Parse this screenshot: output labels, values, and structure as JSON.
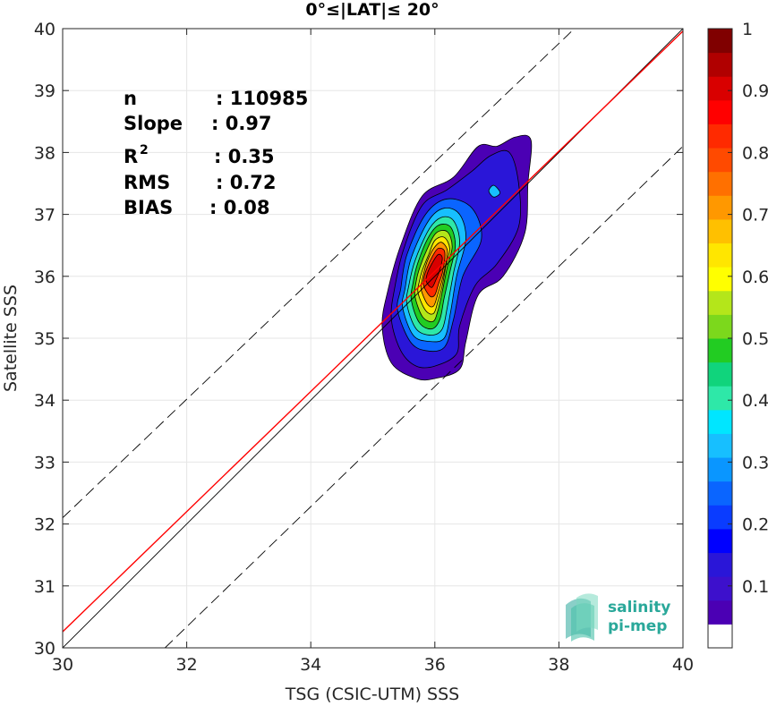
{
  "chart_data": {
    "type": "contour-density-scatter",
    "title": "0°≤|LAT|≤ 20°",
    "xlabel": "TSG (CSIC-UTM) SSS",
    "ylabel": "Satellite SSS",
    "xlim": [
      30,
      40
    ],
    "ylim": [
      30,
      40
    ],
    "xticks": [
      "30",
      "32",
      "34",
      "36",
      "38",
      "40"
    ],
    "yticks": [
      "30",
      "31",
      "32",
      "33",
      "34",
      "35",
      "36",
      "37",
      "38",
      "39",
      "40"
    ],
    "grid": true,
    "stats": [
      {
        "label": "n",
        "value": ": 110985"
      },
      {
        "label": "Slope",
        "value": ": 0.97"
      },
      {
        "label": "R",
        "sup": "2",
        "value": ": 0.35"
      },
      {
        "label": "RMS",
        "value": ": 0.72"
      },
      {
        "label": "BIAS",
        "value": ": 0.08"
      }
    ],
    "lines": [
      {
        "name": "one-to-one",
        "color": "#000000",
        "style": "solid",
        "points": [
          [
            30,
            30
          ],
          [
            40,
            40
          ]
        ]
      },
      {
        "name": "fit",
        "color": "#ff0000",
        "style": "solid",
        "points": [
          [
            30,
            30.26
          ],
          [
            40,
            39.96
          ]
        ]
      },
      {
        "name": "upper-bound",
        "color": "#000000",
        "style": "dashed",
        "points": [
          [
            30,
            32.1
          ],
          [
            38.25,
            40
          ]
        ]
      },
      {
        "name": "lower-bound",
        "color": "#000000",
        "style": "dashed",
        "points": [
          [
            31.65,
            30
          ],
          [
            40,
            38.1
          ]
        ]
      }
    ],
    "density_contours": [
      {
        "level": 0.05,
        "color": "#4b00b4",
        "points": [
          [
            35.15,
            35.2
          ],
          [
            35.3,
            34.6
          ],
          [
            35.7,
            34.35
          ],
          [
            36.0,
            34.35
          ],
          [
            36.4,
            34.5
          ],
          [
            36.5,
            34.95
          ],
          [
            36.7,
            35.7
          ],
          [
            37.1,
            36.0
          ],
          [
            37.45,
            36.7
          ],
          [
            37.5,
            37.5
          ],
          [
            37.55,
            38.2
          ],
          [
            37.3,
            38.25
          ],
          [
            37.0,
            38.1
          ],
          [
            36.7,
            38.1
          ],
          [
            36.3,
            37.6
          ],
          [
            35.8,
            37.3
          ],
          [
            35.45,
            36.5
          ],
          [
            35.25,
            35.8
          ]
        ]
      },
      {
        "level": 0.15,
        "color": "#2a16d8",
        "points": [
          [
            35.3,
            35.3
          ],
          [
            35.45,
            34.8
          ],
          [
            35.7,
            34.55
          ],
          [
            36.0,
            34.55
          ],
          [
            36.35,
            34.75
          ],
          [
            36.4,
            35.2
          ],
          [
            36.65,
            35.85
          ],
          [
            37.0,
            36.2
          ],
          [
            37.35,
            36.8
          ],
          [
            37.35,
            37.5
          ],
          [
            37.2,
            38.0
          ],
          [
            36.9,
            37.95
          ],
          [
            36.6,
            37.7
          ],
          [
            36.2,
            37.4
          ],
          [
            35.8,
            37.15
          ],
          [
            35.5,
            36.45
          ],
          [
            35.35,
            35.8
          ]
        ]
      },
      {
        "level": 0.25,
        "color": "#0a65ff",
        "points": [
          [
            35.4,
            35.45
          ],
          [
            35.6,
            34.95
          ],
          [
            35.85,
            34.8
          ],
          [
            36.15,
            34.85
          ],
          [
            36.3,
            35.3
          ],
          [
            36.45,
            36.0
          ],
          [
            36.75,
            36.6
          ],
          [
            36.6,
            37.1
          ],
          [
            36.2,
            37.25
          ],
          [
            35.85,
            37.0
          ],
          [
            35.55,
            36.35
          ],
          [
            35.45,
            35.8
          ]
        ]
      },
      {
        "level": 0.35,
        "color": "#17bfff",
        "points": [
          [
            35.48,
            35.5
          ],
          [
            35.65,
            35.05
          ],
          [
            35.9,
            34.95
          ],
          [
            36.15,
            35.0
          ],
          [
            36.25,
            35.4
          ],
          [
            36.35,
            36.0
          ],
          [
            36.5,
            36.6
          ],
          [
            36.4,
            37.0
          ],
          [
            36.15,
            37.1
          ],
          [
            35.9,
            36.9
          ],
          [
            35.62,
            36.3
          ],
          [
            35.52,
            35.8
          ]
        ]
      },
      {
        "level": 0.45,
        "color": "#2ee8a8",
        "points": [
          [
            35.55,
            35.55
          ],
          [
            35.7,
            35.15
          ],
          [
            35.95,
            35.05
          ],
          [
            36.12,
            35.15
          ],
          [
            36.2,
            35.5
          ],
          [
            36.3,
            36.05
          ],
          [
            36.4,
            36.55
          ],
          [
            36.3,
            36.9
          ],
          [
            36.1,
            36.95
          ],
          [
            35.9,
            36.75
          ],
          [
            35.68,
            36.25
          ],
          [
            35.58,
            35.85
          ]
        ]
      },
      {
        "level": 0.55,
        "color": "#22cc22",
        "points": [
          [
            35.62,
            35.62
          ],
          [
            35.75,
            35.25
          ],
          [
            35.95,
            35.15
          ],
          [
            36.08,
            35.3
          ],
          [
            36.15,
            35.65
          ],
          [
            36.25,
            36.1
          ],
          [
            36.33,
            36.5
          ],
          [
            36.25,
            36.8
          ],
          [
            36.05,
            36.82
          ],
          [
            35.88,
            36.6
          ],
          [
            35.72,
            36.2
          ],
          [
            35.65,
            35.9
          ]
        ]
      },
      {
        "level": 0.65,
        "color": "#b4e61a",
        "points": [
          [
            35.68,
            35.68
          ],
          [
            35.8,
            35.35
          ],
          [
            35.97,
            35.27
          ],
          [
            36.05,
            35.45
          ],
          [
            36.12,
            35.75
          ],
          [
            36.2,
            36.15
          ],
          [
            36.28,
            36.48
          ],
          [
            36.2,
            36.72
          ],
          [
            36.02,
            36.7
          ],
          [
            35.88,
            36.45
          ],
          [
            35.76,
            36.15
          ],
          [
            35.7,
            35.92
          ]
        ]
      },
      {
        "level": 0.7,
        "color": "#ffe600",
        "points": [
          [
            35.73,
            35.73
          ],
          [
            35.85,
            35.45
          ],
          [
            35.98,
            35.4
          ],
          [
            36.05,
            35.6
          ],
          [
            36.12,
            35.85
          ],
          [
            36.18,
            36.18
          ],
          [
            36.24,
            36.45
          ],
          [
            36.15,
            36.63
          ],
          [
            36.0,
            36.58
          ],
          [
            35.9,
            36.35
          ],
          [
            35.8,
            36.1
          ],
          [
            35.75,
            35.92
          ]
        ]
      },
      {
        "level": 0.8,
        "color": "#ff9800",
        "points": [
          [
            35.78,
            35.78
          ],
          [
            35.88,
            35.55
          ],
          [
            35.98,
            35.52
          ],
          [
            36.05,
            35.72
          ],
          [
            36.12,
            35.95
          ],
          [
            36.18,
            36.22
          ],
          [
            36.2,
            36.43
          ],
          [
            36.1,
            36.55
          ],
          [
            35.98,
            36.45
          ],
          [
            35.88,
            36.25
          ],
          [
            35.82,
            36.05
          ],
          [
            35.79,
            35.92
          ]
        ]
      },
      {
        "level": 0.9,
        "color": "#ff2a00",
        "points": [
          [
            35.82,
            35.85
          ],
          [
            35.92,
            35.68
          ],
          [
            36.0,
            35.7
          ],
          [
            36.06,
            35.88
          ],
          [
            36.12,
            36.05
          ],
          [
            36.16,
            36.28
          ],
          [
            36.15,
            36.42
          ],
          [
            36.05,
            36.45
          ],
          [
            35.96,
            36.32
          ],
          [
            35.88,
            36.15
          ],
          [
            35.83,
            36.0
          ]
        ]
      },
      {
        "level": 0.95,
        "color": "#d90000",
        "points": [
          [
            35.86,
            35.92
          ],
          [
            35.95,
            35.82
          ],
          [
            36.02,
            35.95
          ],
          [
            36.08,
            36.1
          ],
          [
            36.12,
            36.3
          ],
          [
            36.05,
            36.35
          ],
          [
            35.95,
            36.2
          ],
          [
            35.88,
            36.05
          ]
        ]
      },
      {
        "level": 0.3,
        "color": "#17bfff",
        "points": [
          [
            36.87,
            37.38
          ],
          [
            36.95,
            37.28
          ],
          [
            37.05,
            37.35
          ],
          [
            36.95,
            37.47
          ]
        ]
      }
    ],
    "colorbar": {
      "ticks": [
        "0.1",
        "0.2",
        "0.3",
        "0.4",
        "0.5",
        "0.6",
        "0.7",
        "0.8",
        "0.9",
        "1"
      ],
      "range": [
        0,
        1
      ],
      "colors": [
        "#ffffff",
        "#4b00b4",
        "#3d10cc",
        "#2a16d8",
        "#0000ff",
        "#0a3cff",
        "#0a65ff",
        "#0a96ff",
        "#17bfff",
        "#00e6ff",
        "#2ee8a8",
        "#10d47c",
        "#22cc22",
        "#7cd81c",
        "#b4e61a",
        "#ffff00",
        "#ffe600",
        "#ffc000",
        "#ff9800",
        "#ff7000",
        "#ff4a00",
        "#ff2a00",
        "#ff0000",
        "#d90000",
        "#b00000",
        "#800000"
      ]
    }
  },
  "logo": {
    "line1": "salinity",
    "line2": "pi-mep"
  }
}
